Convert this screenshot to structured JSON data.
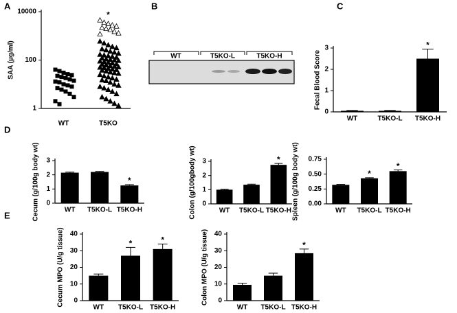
{
  "chart_data": [
    {
      "type": "strip",
      "panel": "A",
      "ylabel": "SAA (µg/ml)",
      "log_scale": true,
      "ylim": [
        1,
        10000
      ],
      "yticks": [
        1,
        100,
        10000
      ],
      "groups": [
        {
          "label": "WT",
          "series": [
            {
              "marker": "square",
              "color": "#000000",
              "values": [
                40,
                35,
                30,
                26,
                24,
                22,
                20,
                18,
                16,
                14,
                13,
                12,
                10,
                9,
                8,
                7,
                6,
                5,
                4,
                3,
                2,
                1.5
              ]
            }
          ]
        },
        {
          "label": "T5KO",
          "significance": "*",
          "series": [
            {
              "marker": "triangle",
              "color": "#000000",
              "values": [
                600,
                500,
                420,
                360,
                320,
                290,
                260,
                230,
                210,
                190,
                170,
                160,
                150,
                140,
                130,
                120,
                110,
                105,
                100,
                95,
                90,
                85,
                80,
                75,
                70,
                66,
                62,
                58,
                55,
                52,
                50,
                48,
                45,
                42,
                40,
                38,
                35,
                32,
                30,
                28,
                25,
                22,
                20,
                18,
                16,
                15,
                14,
                12,
                10,
                9,
                8,
                7,
                6,
                5,
                4,
                3,
                2.5,
                2,
                1.6,
                1.3
              ]
            },
            {
              "marker": "triangle-open",
              "color": "#000000",
              "values": [
                4500,
                3600,
                3200,
                2800,
                2500,
                2200,
                2000,
                1800,
                1500,
                1300,
                1200
              ]
            }
          ]
        }
      ]
    },
    {
      "type": "blot",
      "panel": "B",
      "lanes": [
        "WT",
        "T5KO-L",
        "T5KO-H"
      ]
    },
    {
      "type": "bar",
      "panel": "C",
      "ylabel": "Fecal Blood Score",
      "categories": [
        "WT",
        "T5KO-L",
        "T5KO-H"
      ],
      "values": [
        0.05,
        0.05,
        2.5
      ],
      "errors": [
        0.02,
        0.02,
        0.45
      ],
      "significance": [
        null,
        null,
        "*"
      ],
      "color": "#000000",
      "ylim": [
        0,
        3
      ],
      "yticks": [
        0,
        1,
        2,
        3
      ]
    },
    {
      "type": "bar",
      "panel": "D",
      "ylabel": "Cecum (g/100g body wt)",
      "categories": [
        "WT",
        "T5KO-L",
        "T5KO-H"
      ],
      "values": [
        2.15,
        2.2,
        1.25
      ],
      "errors": [
        0.04,
        0.04,
        0.06
      ],
      "significance": [
        null,
        null,
        "*"
      ],
      "color": "#000000",
      "ylim": [
        0,
        3
      ],
      "yticks": [
        0,
        1,
        2,
        3
      ]
    },
    {
      "type": "bar",
      "ylabel": "Colon (g/100gbody wt)",
      "categories": [
        "WT",
        "T5KO-L",
        "T5KO-H"
      ],
      "values": [
        1.0,
        1.35,
        2.75
      ],
      "errors": [
        0.04,
        0.04,
        0.1
      ],
      "significance": [
        null,
        null,
        "*"
      ],
      "color": "#000000",
      "ylim": [
        0,
        3
      ],
      "yticks": [
        0,
        1,
        2,
        3
      ]
    },
    {
      "type": "bar",
      "ylabel": "Spleen (g/100g body wt)",
      "categories": [
        "WT",
        "T5KO-L",
        "T5KO-H"
      ],
      "values": [
        0.32,
        0.43,
        0.55
      ],
      "errors": [
        0.008,
        0.01,
        0.02
      ],
      "significance": [
        null,
        "*",
        "*"
      ],
      "color": "#000000",
      "ylim": [
        0,
        0.75
      ],
      "yticks": [
        {
          "value": 0,
          "label": "0.00"
        },
        0.25,
        {
          "value": 0.5,
          "label": "0.50"
        },
        0.75
      ]
    },
    {
      "type": "bar",
      "panel": "E",
      "ylabel": "Cecum MPO (U/g tissue)",
      "categories": [
        "WT",
        "T5KO-L",
        "T5KO-H"
      ],
      "values": [
        15,
        27,
        31
      ],
      "errors": [
        1,
        5,
        3
      ],
      "significance": [
        null,
        "*",
        "*"
      ],
      "color": "#000000",
      "ylim": [
        0,
        40
      ],
      "yticks": [
        0,
        10,
        20,
        30,
        40
      ]
    },
    {
      "type": "bar",
      "ylabel": "Colon MPO (U/g tissue)",
      "categories": [
        "WT",
        "T5KO-L",
        "T5KO-H"
      ],
      "values": [
        9.5,
        15,
        28.5
      ],
      "errors": [
        1,
        1.5,
        2.5
      ],
      "significance": [
        null,
        null,
        "*"
      ],
      "color": "#000000",
      "ylim": [
        0,
        40
      ],
      "yticks": [
        0,
        10,
        20,
        30,
        40
      ]
    }
  ]
}
